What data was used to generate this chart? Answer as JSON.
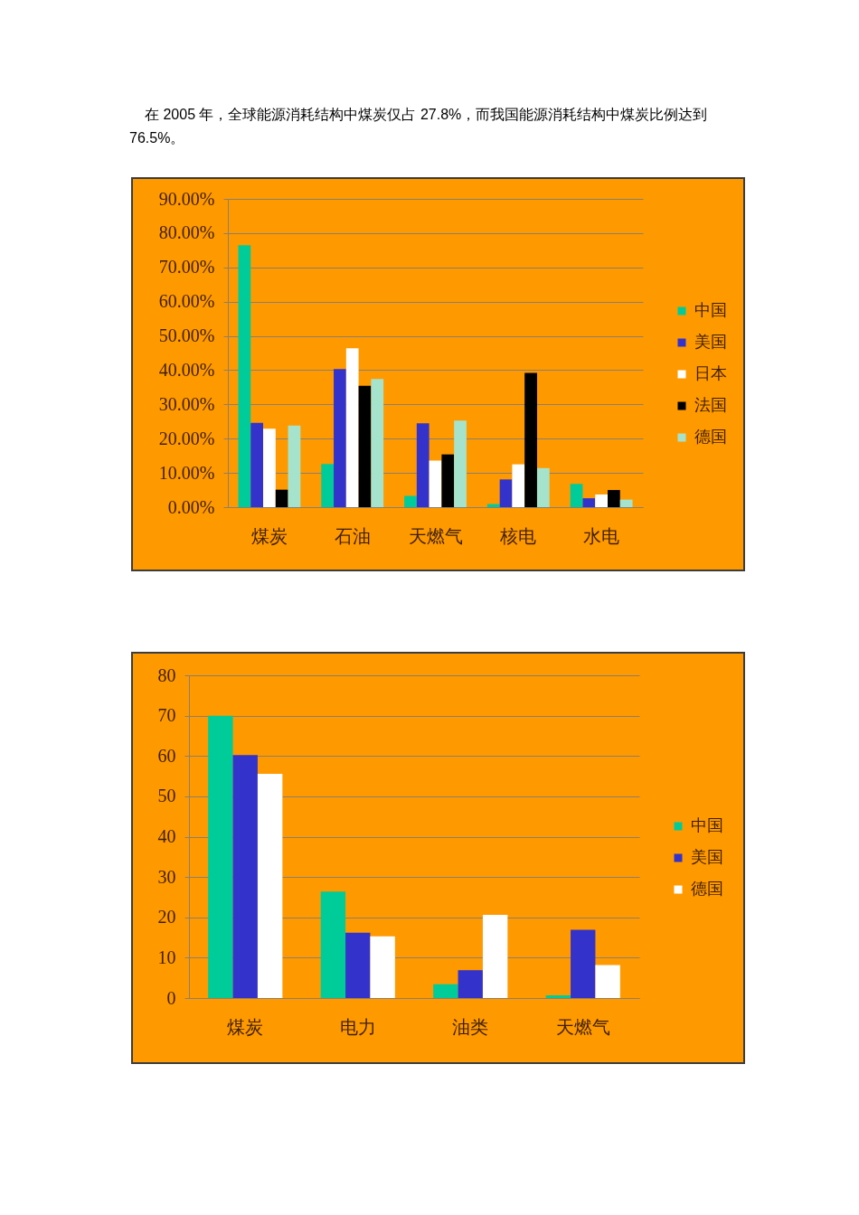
{
  "chart_data": [
    {
      "type": "bar",
      "annotations": [
        "在 2005 年，全球能源消耗结构中煤炭仅占 27.8%，而我国能源消耗结构中煤炭比例达到76.5%。"
      ],
      "categories": [
        "煤炭",
        "石油",
        "天燃气",
        "核电",
        "水电"
      ],
      "series": [
        {
          "name": "中国",
          "color": "#00cc99",
          "values": [
            76.5,
            12.6,
            3.3,
            0.9,
            6.8
          ]
        },
        {
          "name": "美国",
          "color": "#3333cc",
          "values": [
            24.6,
            40.3,
            24.5,
            8.1,
            2.6
          ]
        },
        {
          "name": "日本",
          "color": "#ffffff",
          "values": [
            22.9,
            46.4,
            13.6,
            12.5,
            3.7
          ]
        },
        {
          "name": "法国",
          "color": "#000000",
          "values": [
            5.1,
            35.4,
            15.4,
            39.2,
            5.0
          ]
        },
        {
          "name": "德国",
          "color": "#a6e3cc",
          "values": [
            23.8,
            37.4,
            25.3,
            11.4,
            2.2
          ]
        }
      ],
      "ylim": [
        0,
        90
      ],
      "yticks": [
        {
          "value": 0,
          "label": "0.00%"
        },
        {
          "value": 10,
          "label": "10.00%"
        },
        {
          "value": 20,
          "label": "20.00%"
        },
        {
          "value": 30,
          "label": "30.00%"
        },
        {
          "value": 40,
          "label": "40.00%"
        },
        {
          "value": 50,
          "label": "50.00%"
        },
        {
          "value": 60,
          "label": "60.00%"
        },
        {
          "value": 70,
          "label": "70.00%"
        },
        {
          "value": 80,
          "label": "80.00%"
        },
        {
          "value": 90,
          "label": "90.00%"
        }
      ],
      "grid": "y",
      "legend": "right"
    },
    {
      "type": "bar",
      "categories": [
        "煤炭",
        "电力",
        "油类",
        "天燃气"
      ],
      "series": [
        {
          "name": "中国",
          "color": "#00cc99",
          "values": [
            70,
            26.4,
            3.4,
            0.7
          ]
        },
        {
          "name": "美国",
          "color": "#3333cc",
          "values": [
            60.2,
            16.2,
            6.9,
            16.9
          ]
        },
        {
          "name": "德国",
          "color": "#ffffff",
          "values": [
            55.6,
            15.3,
            20.6,
            8.2
          ]
        }
      ],
      "ylim": [
        0,
        80
      ],
      "yticks": [
        0,
        10,
        20,
        30,
        40,
        50,
        60,
        70,
        80
      ],
      "grid": "y",
      "legend": "right"
    }
  ]
}
